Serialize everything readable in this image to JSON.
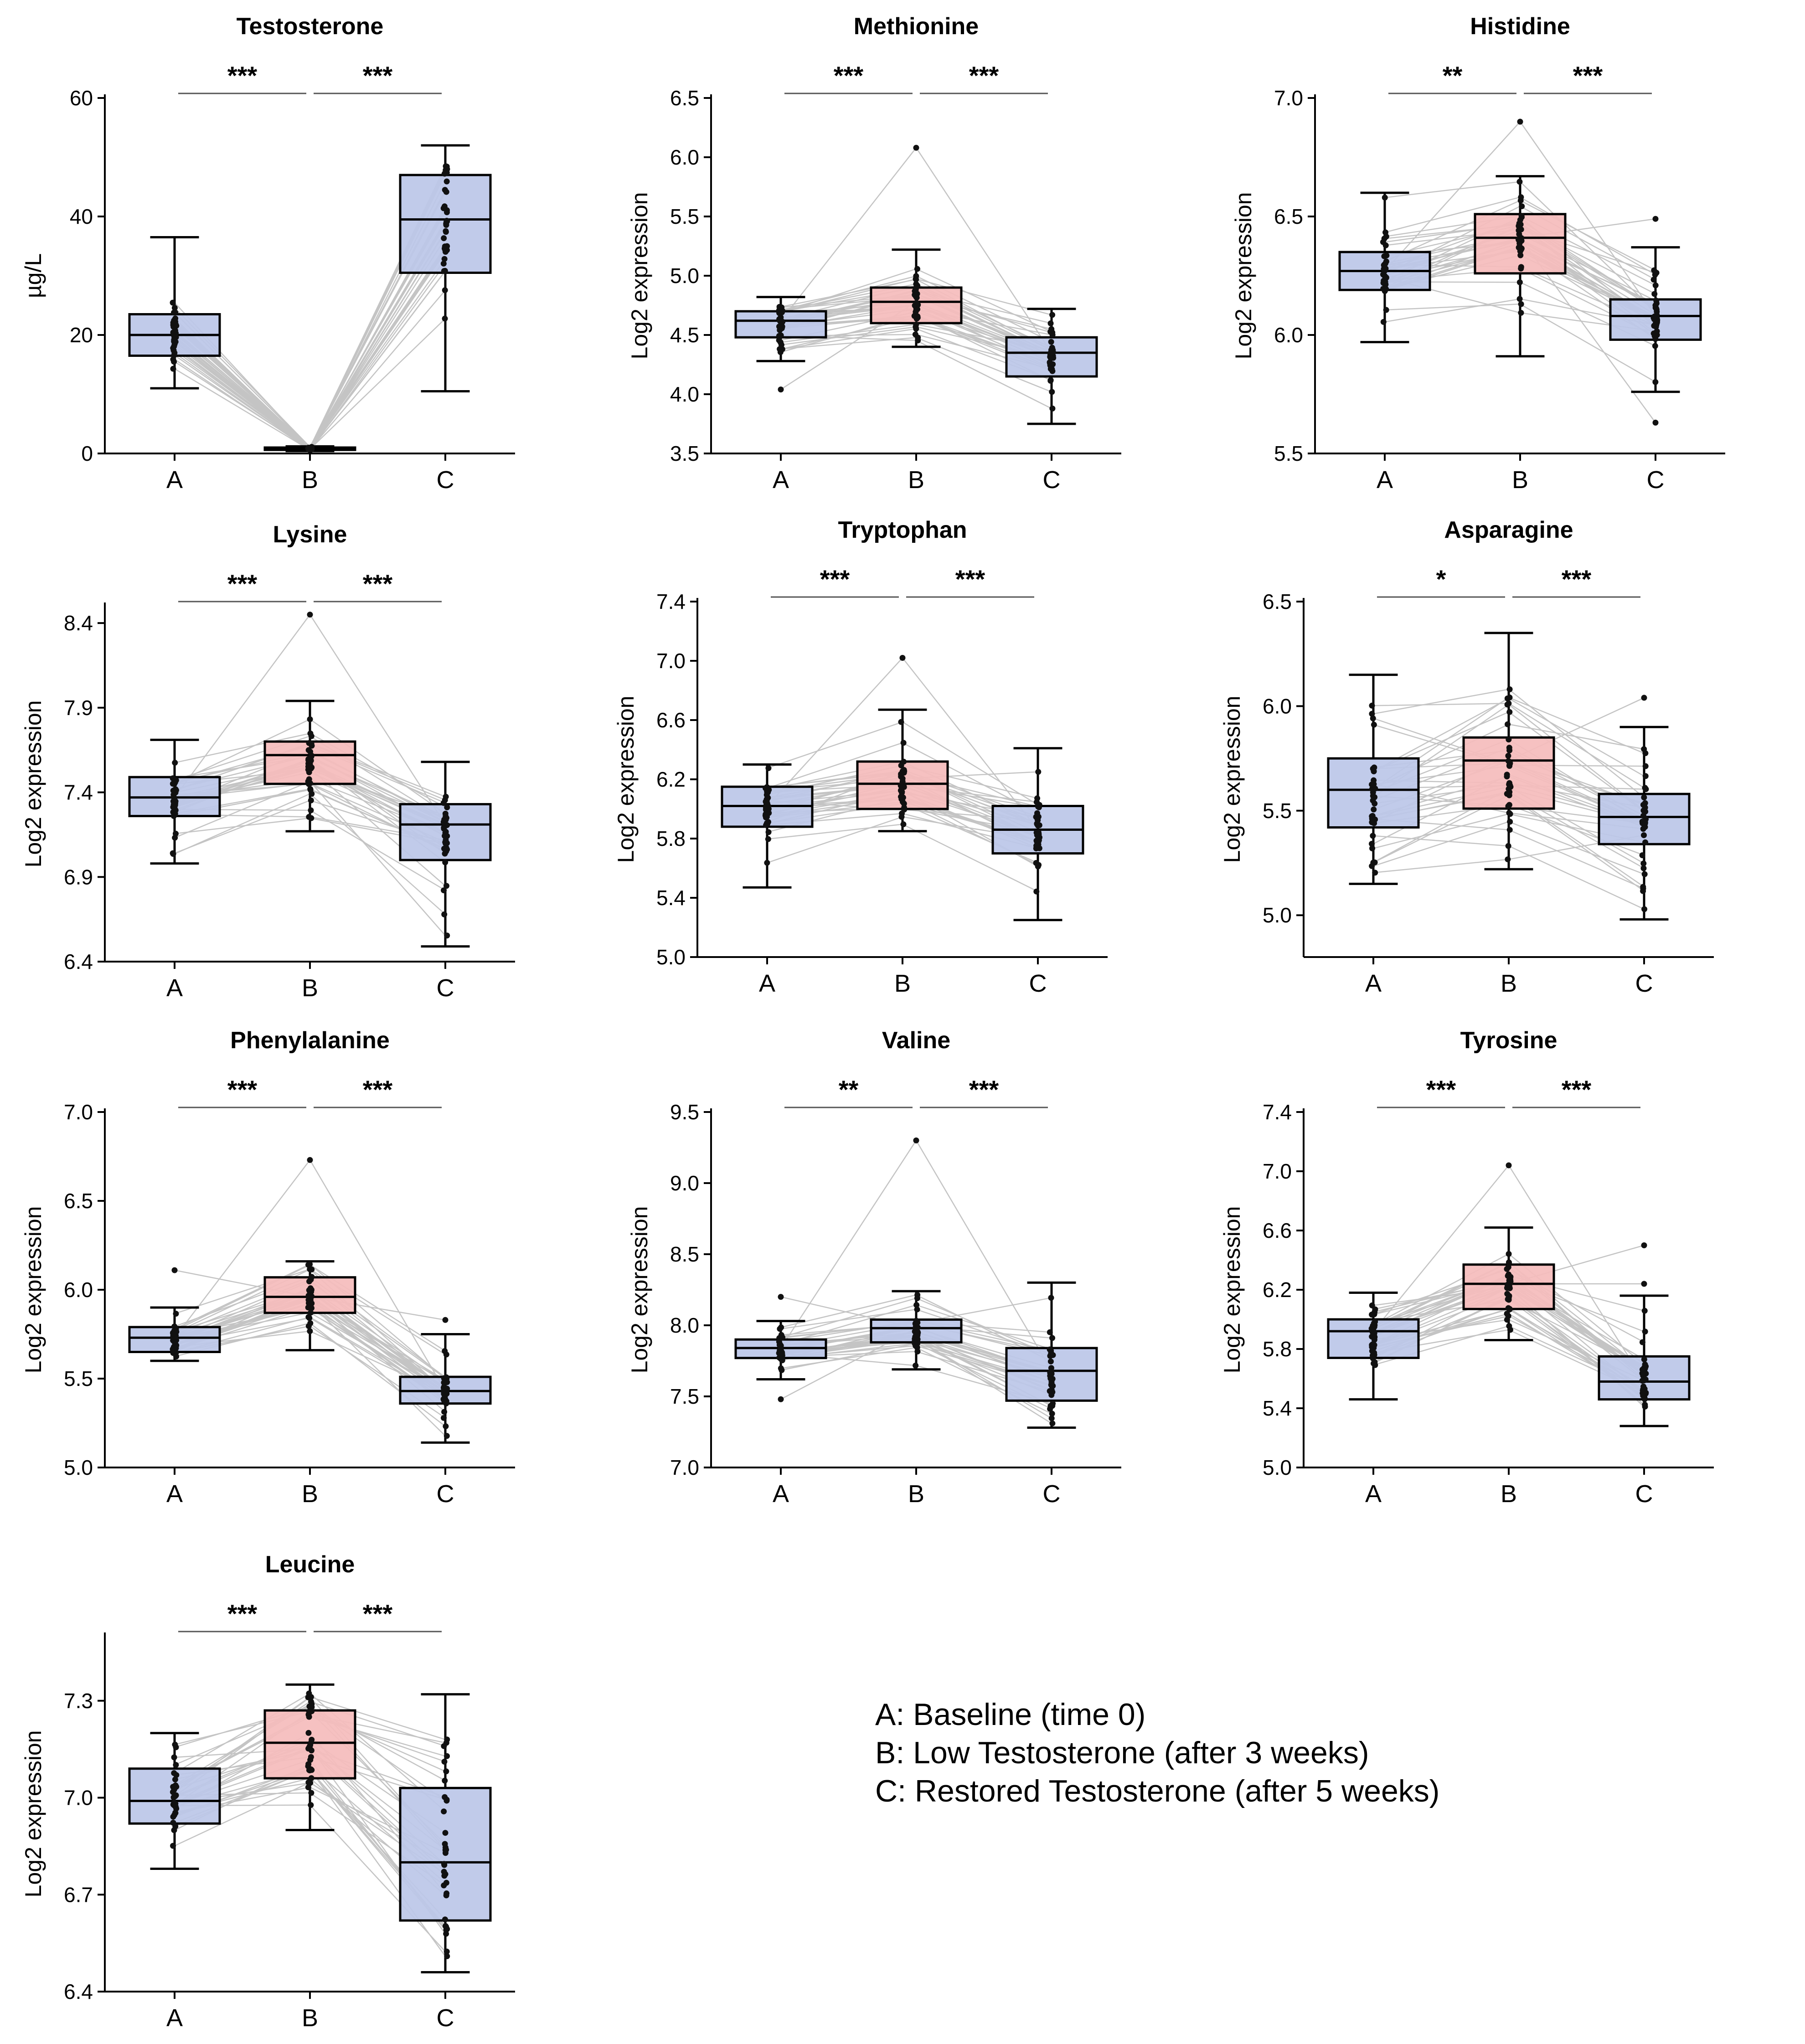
{
  "colors": {
    "blue_fill": "#bcc7e8",
    "red_fill": "#f5bcbc",
    "paired_line": "#c4c4c4",
    "stroke": "#000000"
  },
  "legend": [
    "A: Baseline (time 0)",
    "B: Low Testosterone (after 3 weeks)",
    "C: Restored Testosterone (after 5 weeks)"
  ],
  "chart_data": [
    {
      "type": "box",
      "title": "Testosterone",
      "ylabel": "µg/L",
      "ylim": [
        0,
        60
      ],
      "yticks": [
        0,
        20,
        40,
        60
      ],
      "ytick_labels": [
        "0",
        "20",
        "40",
        "60"
      ],
      "categories": [
        "A",
        "B",
        "C"
      ],
      "box_colors": [
        "blue",
        "blue",
        "blue"
      ],
      "boxes": [
        {
          "min": 11,
          "q1": 16.5,
          "median": 20,
          "q3": 23.5,
          "max": 36.5
        },
        {
          "min": 0.4,
          "q1": 0.6,
          "median": 0.8,
          "q3": 1.0,
          "max": 1.2
        },
        {
          "min": 10.5,
          "q1": 30.5,
          "median": 39.5,
          "q3": 47,
          "max": 52
        }
      ],
      "significance": [
        {
          "from": "A",
          "to": "B",
          "label": "***"
        },
        {
          "from": "B",
          "to": "C",
          "label": "***"
        }
      ]
    },
    {
      "type": "box",
      "title": "Methionine",
      "ylabel": "Log2 expression",
      "ylim": [
        3.5,
        6.5
      ],
      "yticks": [
        3.5,
        4.0,
        4.5,
        5.0,
        5.5,
        6.0,
        6.5
      ],
      "ytick_labels": [
        "3.5",
        "4.0",
        "4.5",
        "5.0",
        "5.5",
        "6.0",
        "6.5"
      ],
      "categories": [
        "A",
        "B",
        "C"
      ],
      "box_colors": [
        "blue",
        "red",
        "blue"
      ],
      "boxes": [
        {
          "min": 4.28,
          "q1": 4.48,
          "median": 4.62,
          "q3": 4.7,
          "max": 4.82
        },
        {
          "min": 4.4,
          "q1": 4.6,
          "median": 4.78,
          "q3": 4.9,
          "max": 5.22
        },
        {
          "min": 3.75,
          "q1": 4.15,
          "median": 4.35,
          "q3": 4.48,
          "max": 4.72
        }
      ],
      "outliers": [
        [
          0,
          4.04
        ],
        [
          1,
          6.08
        ]
      ],
      "significance": [
        {
          "from": "A",
          "to": "B",
          "label": "***"
        },
        {
          "from": "B",
          "to": "C",
          "label": "***"
        }
      ]
    },
    {
      "type": "box",
      "title": "Histidine",
      "ylabel": "Log2 expression",
      "ylim": [
        5.5,
        7.0
      ],
      "yticks": [
        5.5,
        6.0,
        6.5,
        7.0
      ],
      "ytick_labels": [
        "5.5",
        "6.0",
        "6.5",
        "7.0"
      ],
      "categories": [
        "A",
        "B",
        "C"
      ],
      "box_colors": [
        "blue",
        "red",
        "blue"
      ],
      "boxes": [
        {
          "min": 5.97,
          "q1": 6.19,
          "median": 6.27,
          "q3": 6.35,
          "max": 6.6
        },
        {
          "min": 5.91,
          "q1": 6.26,
          "median": 6.41,
          "q3": 6.51,
          "max": 6.67
        },
        {
          "min": 5.76,
          "q1": 5.98,
          "median": 6.08,
          "q3": 6.15,
          "max": 6.37
        }
      ],
      "outliers": [
        [
          1,
          6.9
        ],
        [
          2,
          6.49
        ],
        [
          2,
          5.63
        ]
      ],
      "significance": [
        {
          "from": "A",
          "to": "B",
          "label": "**"
        },
        {
          "from": "B",
          "to": "C",
          "label": "***"
        }
      ]
    },
    {
      "type": "box",
      "title": "Lysine",
      "ylabel": "Log2 expression",
      "ylim": [
        6.4,
        8.5
      ],
      "yticks": [
        6.4,
        6.9,
        7.4,
        7.9,
        8.4
      ],
      "ytick_labels": [
        "6.4",
        "6.9",
        "7.4",
        "7.9",
        "8.4"
      ],
      "categories": [
        "A",
        "B",
        "C"
      ],
      "box_colors": [
        "blue",
        "red",
        "blue"
      ],
      "boxes": [
        {
          "min": 6.98,
          "q1": 7.26,
          "median": 7.37,
          "q3": 7.49,
          "max": 7.71
        },
        {
          "min": 7.17,
          "q1": 7.45,
          "median": 7.62,
          "q3": 7.7,
          "max": 7.94
        },
        {
          "min": 6.49,
          "q1": 7.0,
          "median": 7.21,
          "q3": 7.33,
          "max": 7.58
        }
      ],
      "outliers": [
        [
          1,
          8.45
        ]
      ],
      "significance": [
        {
          "from": "A",
          "to": "B",
          "label": "***"
        },
        {
          "from": "B",
          "to": "C",
          "label": "***"
        }
      ]
    },
    {
      "type": "box",
      "title": "Tryptophan",
      "ylabel": "Log2 expression",
      "ylim": [
        5.0,
        7.4
      ],
      "yticks": [
        5.0,
        5.4,
        5.8,
        6.2,
        6.6,
        7.0,
        7.4
      ],
      "ytick_labels": [
        "5.0",
        "5.4",
        "5.8",
        "6.2",
        "6.6",
        "7.0",
        "7.4"
      ],
      "categories": [
        "A",
        "B",
        "C"
      ],
      "box_colors": [
        "blue",
        "red",
        "blue"
      ],
      "boxes": [
        {
          "min": 5.47,
          "q1": 5.88,
          "median": 6.02,
          "q3": 6.15,
          "max": 6.3
        },
        {
          "min": 5.85,
          "q1": 6.0,
          "median": 6.17,
          "q3": 6.32,
          "max": 6.67
        },
        {
          "min": 5.25,
          "q1": 5.7,
          "median": 5.86,
          "q3": 6.02,
          "max": 6.41
        }
      ],
      "outliers": [
        [
          1,
          7.02
        ]
      ],
      "significance": [
        {
          "from": "A",
          "to": "B",
          "label": "***"
        },
        {
          "from": "B",
          "to": "C",
          "label": "***"
        }
      ]
    },
    {
      "type": "box",
      "title": "Asparagine",
      "ylabel": "Log2 expression",
      "ylim": [
        4.8,
        6.5
      ],
      "yticks": [
        5.0,
        5.5,
        6.0,
        6.5
      ],
      "ytick_labels": [
        "5.0",
        "5.5",
        "6.0",
        "6.5"
      ],
      "categories": [
        "A",
        "B",
        "C"
      ],
      "box_colors": [
        "blue",
        "red",
        "blue"
      ],
      "boxes": [
        {
          "min": 5.15,
          "q1": 5.42,
          "median": 5.6,
          "q3": 5.75,
          "max": 6.15
        },
        {
          "min": 5.22,
          "q1": 5.51,
          "median": 5.74,
          "q3": 5.85,
          "max": 6.35
        },
        {
          "min": 4.98,
          "q1": 5.34,
          "median": 5.47,
          "q3": 5.58,
          "max": 5.9
        }
      ],
      "outliers": [
        [
          2,
          6.04
        ]
      ],
      "significance": [
        {
          "from": "A",
          "to": "B",
          "label": "*"
        },
        {
          "from": "B",
          "to": "C",
          "label": "***"
        }
      ]
    },
    {
      "type": "box",
      "title": "Phenylalanine",
      "ylabel": "Log2 expression",
      "ylim": [
        5.0,
        7.0
      ],
      "yticks": [
        5.0,
        5.5,
        6.0,
        6.5,
        7.0
      ],
      "ytick_labels": [
        "5.0",
        "5.5",
        "6.0",
        "6.5",
        "7.0"
      ],
      "categories": [
        "A",
        "B",
        "C"
      ],
      "box_colors": [
        "blue",
        "red",
        "blue"
      ],
      "boxes": [
        {
          "min": 5.6,
          "q1": 5.65,
          "median": 5.73,
          "q3": 5.79,
          "max": 5.9
        },
        {
          "min": 5.66,
          "q1": 5.87,
          "median": 5.96,
          "q3": 6.07,
          "max": 6.16
        },
        {
          "min": 5.14,
          "q1": 5.36,
          "median": 5.43,
          "q3": 5.51,
          "max": 5.75
        }
      ],
      "outliers": [
        [
          0,
          6.11
        ],
        [
          1,
          6.73
        ],
        [
          2,
          5.83
        ]
      ],
      "significance": [
        {
          "from": "A",
          "to": "B",
          "label": "***"
        },
        {
          "from": "B",
          "to": "C",
          "label": "***"
        }
      ]
    },
    {
      "type": "box",
      "title": "Valine",
      "ylabel": "Log2 expression",
      "ylim": [
        7.0,
        9.5
      ],
      "yticks": [
        7.0,
        7.5,
        8.0,
        8.5,
        9.0,
        9.5
      ],
      "ytick_labels": [
        "7.0",
        "7.5",
        "8.0",
        "8.5",
        "9.0",
        "9.5"
      ],
      "categories": [
        "A",
        "B",
        "C"
      ],
      "box_colors": [
        "blue",
        "blue",
        "blue"
      ],
      "boxes": [
        {
          "min": 7.62,
          "q1": 7.77,
          "median": 7.84,
          "q3": 7.9,
          "max": 8.03
        },
        {
          "min": 7.69,
          "q1": 7.88,
          "median": 7.98,
          "q3": 8.04,
          "max": 8.24
        },
        {
          "min": 7.28,
          "q1": 7.47,
          "median": 7.68,
          "q3": 7.84,
          "max": 8.3
        }
      ],
      "outliers": [
        [
          0,
          8.2
        ],
        [
          0,
          7.48
        ],
        [
          1,
          9.3
        ]
      ],
      "significance": [
        {
          "from": "A",
          "to": "B",
          "label": "**"
        },
        {
          "from": "B",
          "to": "C",
          "label": "***"
        }
      ]
    },
    {
      "type": "box",
      "title": "Tyrosine",
      "ylabel": "Log2 expression",
      "ylim": [
        5.0,
        7.4
      ],
      "yticks": [
        5.0,
        5.4,
        5.8,
        6.2,
        6.6,
        7.0,
        7.4
      ],
      "ytick_labels": [
        "5.0",
        "5.4",
        "5.8",
        "6.2",
        "6.6",
        "7.0",
        "7.4"
      ],
      "categories": [
        "A",
        "B",
        "C"
      ],
      "box_colors": [
        "blue",
        "red",
        "blue"
      ],
      "boxes": [
        {
          "min": 5.46,
          "q1": 5.74,
          "median": 5.92,
          "q3": 6.0,
          "max": 6.18
        },
        {
          "min": 5.86,
          "q1": 6.07,
          "median": 6.24,
          "q3": 6.37,
          "max": 6.62
        },
        {
          "min": 5.28,
          "q1": 5.46,
          "median": 5.58,
          "q3": 5.75,
          "max": 6.16
        }
      ],
      "outliers": [
        [
          1,
          7.04
        ],
        [
          2,
          6.5
        ],
        [
          2,
          6.24
        ]
      ],
      "significance": [
        {
          "from": "A",
          "to": "B",
          "label": "***"
        },
        {
          "from": "B",
          "to": "C",
          "label": "***"
        }
      ]
    },
    {
      "type": "box",
      "title": "Leucine",
      "ylabel": "Log2 expression",
      "ylim": [
        6.4,
        7.5
      ],
      "yticks": [
        6.4,
        6.7,
        7.0,
        7.3
      ],
      "ytick_labels": [
        "6.4",
        "6.7",
        "7.0",
        "7.3"
      ],
      "categories": [
        "A",
        "B",
        "C"
      ],
      "box_colors": [
        "blue",
        "red",
        "blue"
      ],
      "boxes": [
        {
          "min": 6.78,
          "q1": 6.92,
          "median": 6.99,
          "q3": 7.09,
          "max": 7.2
        },
        {
          "min": 6.9,
          "q1": 7.06,
          "median": 7.17,
          "q3": 7.27,
          "max": 7.35
        },
        {
          "min": 6.46,
          "q1": 6.62,
          "median": 6.8,
          "q3": 7.03,
          "max": 7.32
        }
      ],
      "significance": [
        {
          "from": "A",
          "to": "B",
          "label": "***"
        },
        {
          "from": "B",
          "to": "C",
          "label": "***"
        }
      ]
    }
  ]
}
